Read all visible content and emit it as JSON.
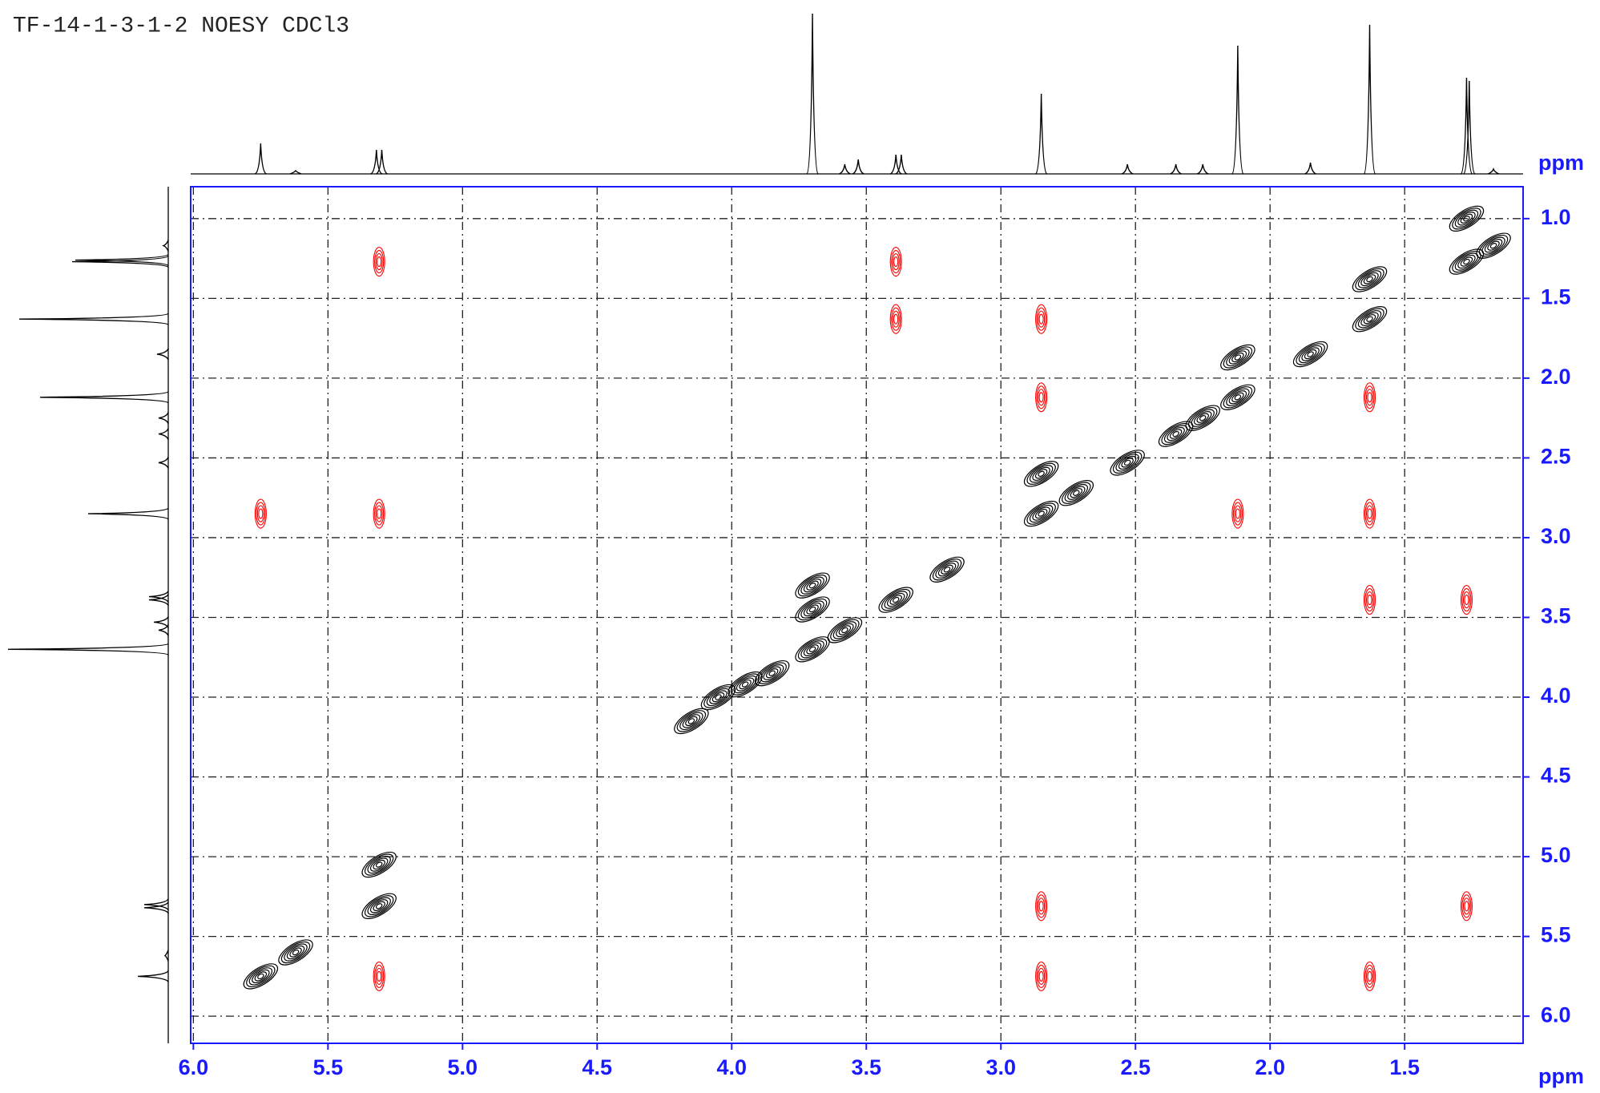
{
  "chart_data": {
    "type": "contour",
    "title": "TF-14-1-3-1-2 NOESY CDCl3",
    "x_label": "ppm",
    "y_label": "ppm",
    "xlim": [
      6.01,
      1.06
    ],
    "ylim": [
      0.8,
      6.17
    ],
    "xticks": [
      {
        "value": 6,
        "label": "6.0"
      },
      5.5,
      {
        "value": 5,
        "label": "5.0"
      },
      4.5,
      {
        "value": 4,
        "label": "4.0"
      },
      3.5,
      {
        "value": 3,
        "label": "3.0"
      },
      2.5,
      {
        "value": 2,
        "label": "2.0"
      },
      1.5
    ],
    "yticks": [
      {
        "value": 1,
        "label": "1.0"
      },
      1.5,
      {
        "value": 2,
        "label": "2.0"
      },
      2.5,
      {
        "value": 3,
        "label": "3.0"
      },
      3.5,
      {
        "value": 4,
        "label": "4.0"
      },
      4.5,
      {
        "value": 5,
        "label": "5.0"
      },
      5.5,
      {
        "value": 6,
        "label": "6.0"
      }
    ],
    "grid": true,
    "axis_color": "#1a1aff",
    "projection": {
      "color": "#000000",
      "x": [
        5.75,
        5.62,
        5.32,
        5.3,
        3.7,
        3.58,
        3.53,
        3.39,
        3.37,
        2.85,
        2.53,
        2.35,
        2.25,
        2.12,
        1.85,
        1.63,
        1.27,
        1.26,
        1.17
      ],
      "values": [
        19,
        2,
        15,
        15,
        100,
        6,
        9,
        12,
        12,
        50,
        6,
        6,
        6,
        80,
        7,
        93,
        60,
        58,
        3
      ]
    },
    "positive_peaks": {
      "color": "#000000",
      "x": [
        5.75,
        5.62,
        5.31,
        4.15,
        4.05,
        3.95,
        3.85,
        3.7,
        3.58,
        3.39,
        3.2,
        2.85,
        2.72,
        2.53,
        2.35,
        2.25,
        2.12,
        1.85,
        1.63,
        1.27,
        1.17,
        1.27,
        1.63,
        2.12,
        2.85,
        3.7,
        3.7,
        5.31
      ],
      "y": [
        5.75,
        5.6,
        5.31,
        4.15,
        4.0,
        3.92,
        3.85,
        3.7,
        3.58,
        3.39,
        3.2,
        2.85,
        2.72,
        2.53,
        2.35,
        2.25,
        2.12,
        1.85,
        1.63,
        1.27,
        1.17,
        1.0,
        1.38,
        1.87,
        2.6,
        3.45,
        3.3,
        5.05
      ]
    },
    "negative_peaks": {
      "color": "#ff0000",
      "x": [
        5.31,
        3.39,
        3.39,
        2.85,
        2.85,
        5.75,
        5.31,
        2.12,
        1.63,
        1.63,
        1.27,
        2.85,
        1.27,
        2.85,
        1.63,
        1.63,
        5.31
      ],
      "y": [
        1.27,
        1.27,
        1.63,
        1.63,
        2.12,
        2.85,
        2.85,
        2.85,
        2.85,
        3.39,
        3.39,
        5.31,
        5.31,
        5.75,
        5.75,
        2.12,
        5.75
      ]
    }
  }
}
